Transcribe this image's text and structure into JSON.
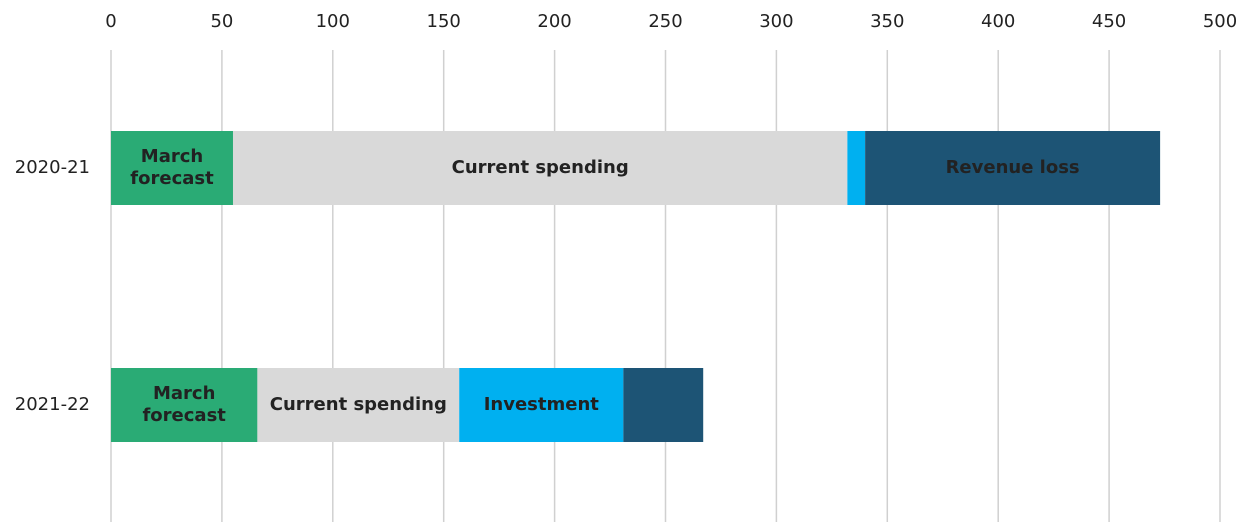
{
  "chart_data": {
    "type": "stacked_bar_horizontal",
    "categories": [
      "2020-21",
      "2021-22"
    ],
    "series": [
      {
        "name": "March forecast",
        "color": "#2aab75",
        "values": [
          55,
          66
        ]
      },
      {
        "name": "Current spending",
        "color": "#d9d9d9",
        "values": [
          277,
          91
        ]
      },
      {
        "name": "Investment",
        "color": "#00b0f0",
        "values": [
          8,
          74
        ]
      },
      {
        "name": "Revenue loss",
        "color": "#1d5475",
        "values": [
          133,
          36
        ]
      }
    ],
    "xlim": [
      0,
      500
    ],
    "xticks": [
      0,
      50,
      100,
      150,
      200,
      250,
      300,
      350,
      400,
      450,
      500
    ],
    "grid": true
  }
}
